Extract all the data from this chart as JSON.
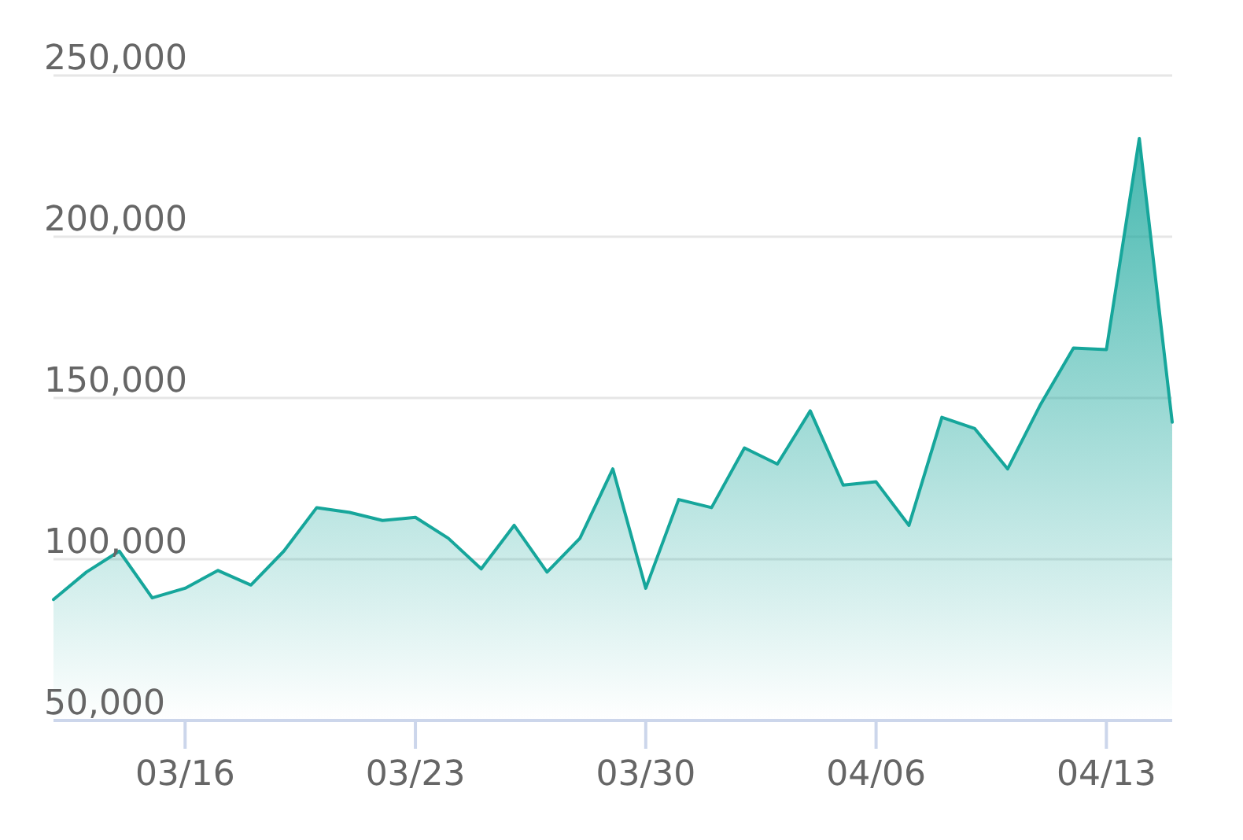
{
  "chart_data": {
    "type": "area",
    "x": [
      "--03-12",
      "--03-13",
      "--03-14",
      "--03-15",
      "--03-16",
      "--03-17",
      "--03-18",
      "--03-19",
      "--03-20",
      "--03-21",
      "--03-22",
      "--03-23",
      "--03-24",
      "--03-25",
      "--03-26",
      "--03-27",
      "--03-28",
      "--03-29",
      "--03-30",
      "--03-31",
      "--04-01",
      "--04-02",
      "--04-03",
      "--04-04",
      "--04-05",
      "--04-06",
      "--04-07",
      "--04-08",
      "--04-09",
      "--04-10",
      "--04-11",
      "--04-12",
      "--04-13",
      "--04-14",
      "--04-15"
    ],
    "values": [
      87500,
      96000,
      102500,
      88000,
      91000,
      96500,
      92000,
      102500,
      116000,
      114500,
      112000,
      113000,
      106500,
      97000,
      110500,
      96000,
      106500,
      128000,
      91000,
      118500,
      116000,
      134500,
      129500,
      146000,
      123000,
      124000,
      110500,
      144000,
      140500,
      128000,
      148000,
      165500,
      165000,
      230500,
      142500
    ],
    "color": "#16a69b",
    "xlim": [
      "--03-12",
      "--04-15"
    ],
    "xticks": [
      {
        "value": "--03-16",
        "label": "03/16"
      },
      {
        "value": "--03-23",
        "label": "03/23"
      },
      {
        "value": "--03-30",
        "label": "03/30"
      },
      {
        "value": "--04-06",
        "label": "04/06"
      },
      {
        "value": "--04-13",
        "label": "04/13"
      }
    ],
    "ylim": [
      50000,
      250000
    ],
    "yticks": [
      {
        "value": 50000,
        "label": "50,000"
      },
      {
        "value": 100000,
        "label": "100,000"
      },
      {
        "value": 150000,
        "label": "150,000"
      },
      {
        "value": 200000,
        "label": "200,000"
      },
      {
        "value": 250000,
        "label": "250,000"
      }
    ],
    "grid": "y"
  }
}
